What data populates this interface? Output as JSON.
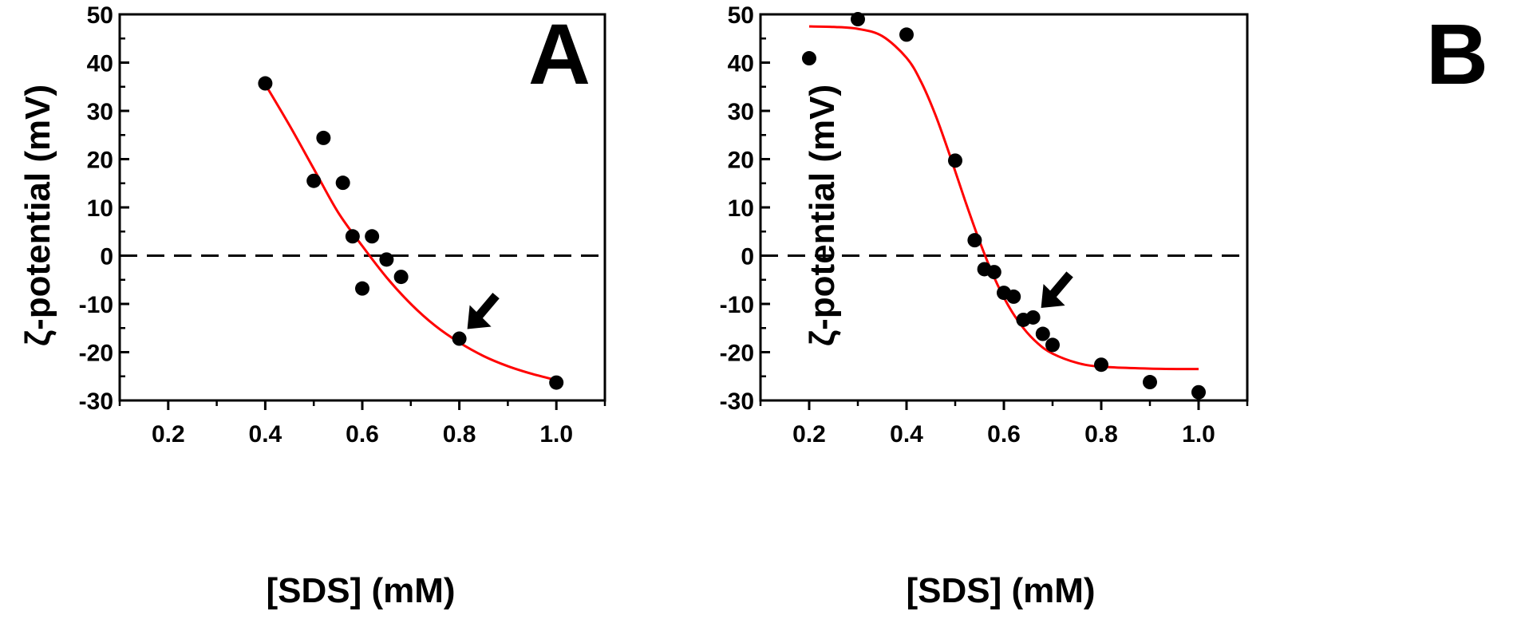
{
  "chart_data": [
    {
      "type": "scatter",
      "panel": "A",
      "xlabel": "[SDS] (mM)",
      "ylabel": "ζ-potential (mV)",
      "xlim": [
        0.1,
        1.1
      ],
      "ylim": [
        -30,
        50
      ],
      "xticks": [
        "0.2",
        "0.4",
        "0.6",
        "0.8",
        "1.0"
      ],
      "yticks": [
        "50",
        "40",
        "30",
        "20",
        "10",
        "0",
        "-10",
        "-20",
        "-30"
      ],
      "grid": false,
      "reference_line_y": 0,
      "points": [
        {
          "x": 0.4,
          "y": 35.7
        },
        {
          "x": 0.5,
          "y": 15.5
        },
        {
          "x": 0.52,
          "y": 24.4
        },
        {
          "x": 0.56,
          "y": 15.1
        },
        {
          "x": 0.58,
          "y": 4.0
        },
        {
          "x": 0.6,
          "y": -6.8
        },
        {
          "x": 0.62,
          "y": 4.0
        },
        {
          "x": 0.65,
          "y": -0.8
        },
        {
          "x": 0.68,
          "y": -4.4
        },
        {
          "x": 0.8,
          "y": -17.2
        },
        {
          "x": 1.0,
          "y": -26.3
        }
      ],
      "fit_line": [
        {
          "x": 0.4,
          "y": 35.5
        },
        {
          "x": 0.45,
          "y": 27.0
        },
        {
          "x": 0.5,
          "y": 18.0
        },
        {
          "x": 0.55,
          "y": 9.0
        },
        {
          "x": 0.6,
          "y": 2.0
        },
        {
          "x": 0.65,
          "y": -4.5
        },
        {
          "x": 0.7,
          "y": -10.0
        },
        {
          "x": 0.75,
          "y": -14.5
        },
        {
          "x": 0.8,
          "y": -18.0
        },
        {
          "x": 0.85,
          "y": -20.8
        },
        {
          "x": 0.9,
          "y": -22.9
        },
        {
          "x": 0.95,
          "y": -24.5
        },
        {
          "x": 1.0,
          "y": -25.8
        }
      ],
      "arrow_target": {
        "x": 0.8,
        "y": -17.2
      },
      "colors": {
        "points": "#000000",
        "fit": "#ff0000"
      }
    },
    {
      "type": "scatter",
      "panel": "B",
      "xlabel": "[SDS] (mM)",
      "ylabel": "ζ-potential (mV)",
      "xlim": [
        0.1,
        1.1
      ],
      "ylim": [
        -30,
        50
      ],
      "xticks": [
        "0.2",
        "0.4",
        "0.6",
        "0.8",
        "1.0"
      ],
      "yticks": [
        "50",
        "40",
        "30",
        "20",
        "10",
        "0",
        "-10",
        "-20",
        "-30"
      ],
      "grid": false,
      "reference_line_y": 0,
      "points": [
        {
          "x": 0.2,
          "y": 40.9
        },
        {
          "x": 0.3,
          "y": 49.0
        },
        {
          "x": 0.4,
          "y": 45.8
        },
        {
          "x": 0.5,
          "y": 19.7
        },
        {
          "x": 0.54,
          "y": 3.2
        },
        {
          "x": 0.56,
          "y": -2.8
        },
        {
          "x": 0.58,
          "y": -3.4
        },
        {
          "x": 0.6,
          "y": -7.7
        },
        {
          "x": 0.62,
          "y": -8.5
        },
        {
          "x": 0.64,
          "y": -13.3
        },
        {
          "x": 0.66,
          "y": -12.8
        },
        {
          "x": 0.68,
          "y": -16.2
        },
        {
          "x": 0.7,
          "y": -18.5
        },
        {
          "x": 0.8,
          "y": -22.6
        },
        {
          "x": 0.9,
          "y": -26.2
        },
        {
          "x": 1.0,
          "y": -28.3
        }
      ],
      "fit_line": [
        {
          "x": 0.2,
          "y": 47.5
        },
        {
          "x": 0.25,
          "y": 47.4
        },
        {
          "x": 0.3,
          "y": 47.0
        },
        {
          "x": 0.35,
          "y": 45.5
        },
        {
          "x": 0.4,
          "y": 41.0
        },
        {
          "x": 0.43,
          "y": 36.0
        },
        {
          "x": 0.46,
          "y": 29.0
        },
        {
          "x": 0.49,
          "y": 20.5
        },
        {
          "x": 0.52,
          "y": 11.5
        },
        {
          "x": 0.55,
          "y": 3.0
        },
        {
          "x": 0.58,
          "y": -4.5
        },
        {
          "x": 0.61,
          "y": -10.5
        },
        {
          "x": 0.64,
          "y": -15.0
        },
        {
          "x": 0.67,
          "y": -18.2
        },
        {
          "x": 0.7,
          "y": -20.3
        },
        {
          "x": 0.75,
          "y": -22.2
        },
        {
          "x": 0.8,
          "y": -23.0
        },
        {
          "x": 0.9,
          "y": -23.4
        },
        {
          "x": 1.0,
          "y": -23.5
        }
      ],
      "arrow_target": {
        "x": 0.66,
        "y": -12.8
      },
      "colors": {
        "points": "#000000",
        "fit": "#ff0000"
      }
    }
  ]
}
